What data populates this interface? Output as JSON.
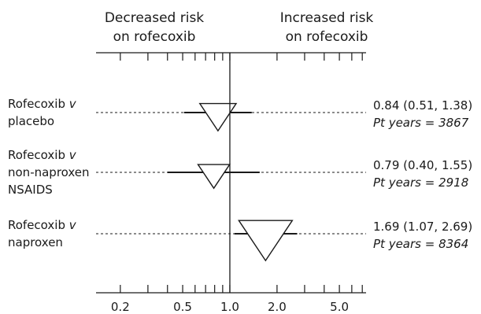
{
  "chart_data": {
    "type": "forest",
    "headers": {
      "left": [
        "Decreased risk",
        "on rofecoxib"
      ],
      "right": [
        "Increased risk",
        "on rofecoxib"
      ]
    },
    "x_scale": "log",
    "xlim": [
      0.14,
      7.4
    ],
    "reference_line": 1.0,
    "x_tick_labels": [
      {
        "value": 0.2,
        "label": "0.2"
      },
      {
        "value": 0.5,
        "label": "0.5"
      },
      {
        "value": 1.0,
        "label": "1.0"
      },
      {
        "value": 2.0,
        "label": "2.0"
      },
      {
        "value": 5.0,
        "label": "5.0"
      }
    ],
    "minor_ticks": [
      0.2,
      0.3,
      0.4,
      0.5,
      0.6,
      0.7,
      0.8,
      0.9,
      1.0,
      2.0,
      3.0,
      4.0,
      5.0,
      6.0,
      7.0
    ],
    "rows": [
      {
        "label": [
          "Rofecoxib v",
          "placebo"
        ],
        "estimate": 0.84,
        "ci_low": 0.51,
        "ci_high": 1.38,
        "ci_text": "0.84 (0.51, 1.38)",
        "pt_years_prefix": "Pt years = ",
        "pt_years": "3867",
        "weight": 3867
      },
      {
        "label": [
          "Rofecoxib v",
          "non-naproxen",
          "NSAIDS"
        ],
        "estimate": 0.79,
        "ci_low": 0.4,
        "ci_high": 1.55,
        "ci_text": "0.79 (0.40, 1.55)",
        "pt_years_prefix": "Pt years = ",
        "pt_years": "2918",
        "weight": 2918
      },
      {
        "label": [
          "Rofecoxib v",
          "naproxen"
        ],
        "estimate": 1.69,
        "ci_low": 1.07,
        "ci_high": 2.69,
        "ci_text": "1.69 (1.07, 2.69)",
        "pt_years_prefix": "Pt years = ",
        "pt_years": "8364",
        "weight": 8364
      }
    ],
    "title": "",
    "xlabel": "",
    "ylabel": ""
  }
}
